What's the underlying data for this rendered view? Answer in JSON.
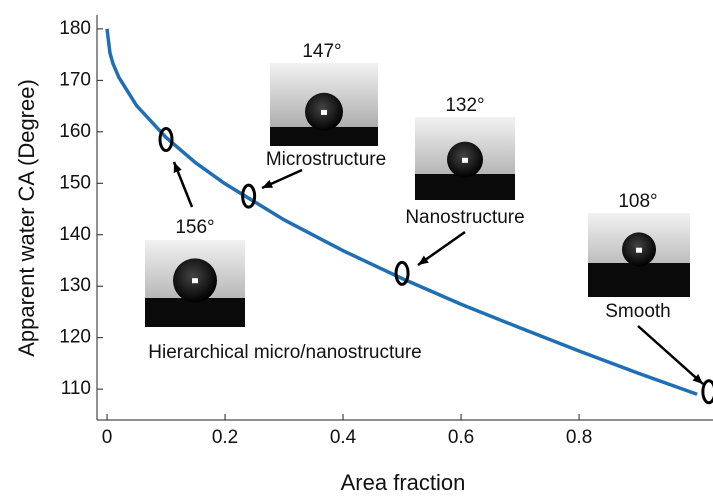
{
  "chart_data": {
    "type": "line",
    "x_label": "Area fraction",
    "y_label": "Apparent water CA (Degree)",
    "x": [
      0,
      0.005,
      0.01,
      0.02,
      0.05,
      0.1,
      0.15,
      0.2,
      0.3,
      0.4,
      0.5,
      0.6,
      0.7,
      0.8,
      0.9,
      1.0
    ],
    "series": [
      {
        "color": "#1f6fb4",
        "values": [
          180,
          175.3,
          173.3,
          170.6,
          165.1,
          158.9,
          154.0,
          149.9,
          142.9,
          136.9,
          131.5,
          126.5,
          121.9,
          117.4,
          113.1,
          109.0
        ]
      }
    ],
    "highlighted_points": {
      "x": [
        0.1,
        0.24,
        0.5,
        1.02
      ],
      "y": [
        158.5,
        147.5,
        132.5,
        109.5
      ]
    },
    "annotations": [
      "156°",
      "147°",
      "132°",
      "108°",
      "Hierarchical micro/nanostructure",
      "Microstructure",
      "Nanostructure",
      "Smooth"
    ],
    "xlim": [
      -0.017,
      1.027
    ],
    "ylim": [
      104,
      182.7
    ],
    "xticks": [
      0,
      0.2,
      0.4,
      0.6,
      0.8
    ],
    "yticks": [
      110,
      120,
      130,
      140,
      150,
      160,
      170,
      180
    ]
  }
}
